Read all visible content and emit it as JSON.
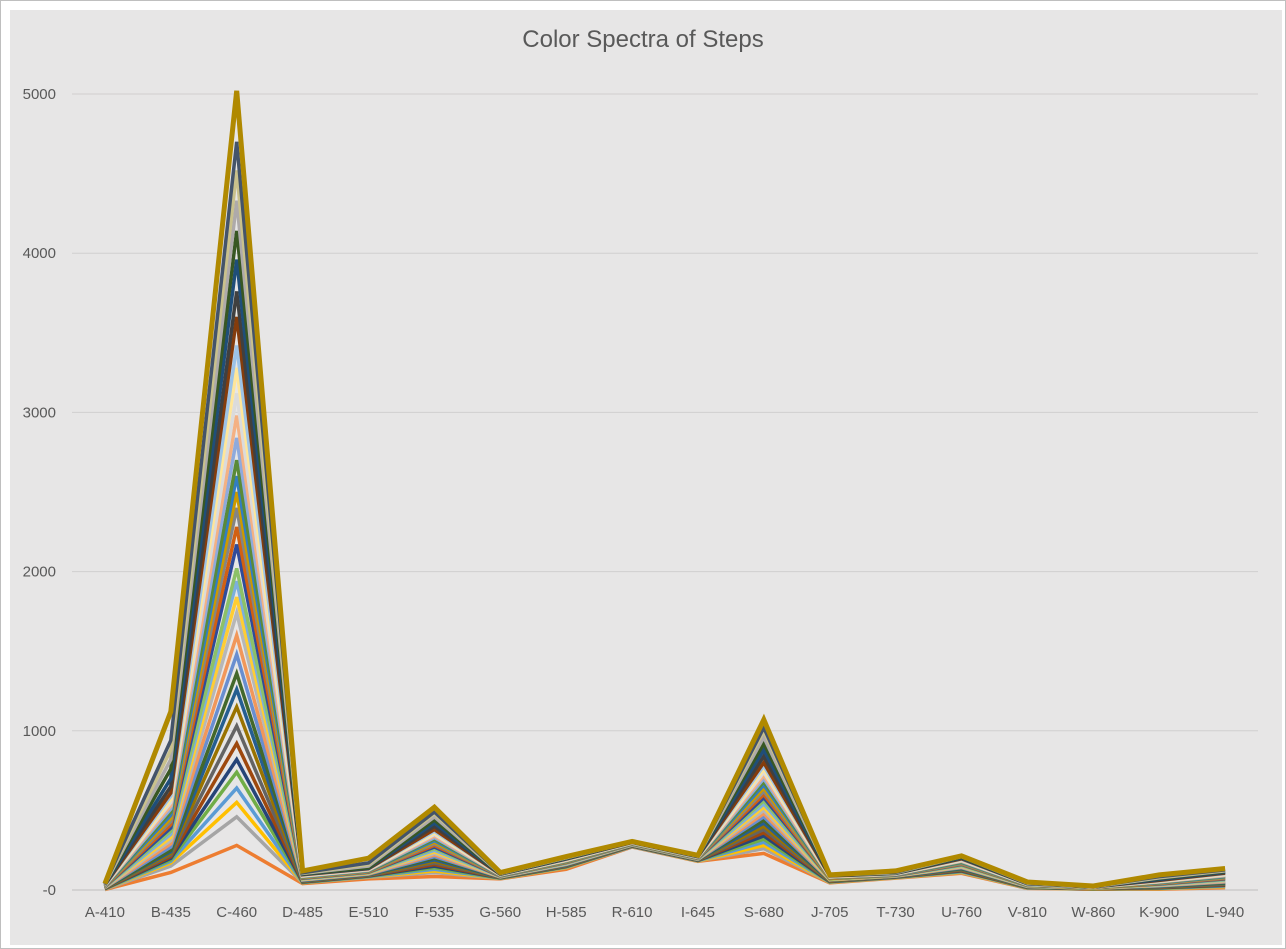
{
  "chart_data": {
    "type": "line",
    "title": "Color Spectra of Steps",
    "xlabel": "",
    "ylabel": "",
    "categories": [
      "A-410",
      "B-435",
      "C-460",
      "D-485",
      "E-510",
      "F-535",
      "G-560",
      "H-585",
      "R-610",
      "I-645",
      "S-680",
      "J-705",
      "T-730",
      "U-760",
      "V-810",
      "W-860",
      "K-900",
      "L-940"
    ],
    "y_ticks": [
      "-0",
      "1000",
      "2000",
      "3000",
      "4000",
      "5000"
    ],
    "ylim": [
      0,
      5000
    ],
    "grid": true,
    "legend": "none",
    "series": [
      {
        "values": [
          3,
          110,
          280,
          40,
          70,
          85,
          70,
          130,
          270,
          180,
          230,
          45,
          75,
          105,
          10,
          5,
          5,
          15
        ],
        "color": "#ed7d31"
      },
      {
        "values": [
          5,
          150,
          460,
          45,
          80,
          110,
          72,
          140,
          272,
          182,
          260,
          48,
          77,
          110,
          12,
          6,
          8,
          20
        ],
        "color": "#a5a5a5"
      },
      {
        "values": [
          6,
          170,
          550,
          46,
          82,
          120,
          73,
          142,
          273,
          183,
          280,
          49,
          78,
          112,
          13,
          6,
          9,
          22
        ],
        "color": "#ffc000"
      },
      {
        "values": [
          7,
          180,
          640,
          47,
          84,
          130,
          74,
          144,
          274,
          184,
          300,
          50,
          79,
          115,
          14,
          7,
          10,
          25
        ],
        "color": "#5b9bd5"
      },
      {
        "values": [
          8,
          190,
          740,
          48,
          86,
          140,
          75,
          146,
          275,
          185,
          320,
          52,
          80,
          118,
          15,
          7,
          12,
          28
        ],
        "color": "#70ad47"
      },
      {
        "values": [
          9,
          200,
          820,
          50,
          88,
          150,
          76,
          148,
          276,
          186,
          340,
          53,
          81,
          120,
          16,
          8,
          14,
          30
        ],
        "color": "#264478"
      },
      {
        "values": [
          10,
          210,
          920,
          52,
          90,
          160,
          77,
          150,
          277,
          187,
          360,
          55,
          82,
          123,
          17,
          8,
          16,
          33
        ],
        "color": "#9e480e"
      },
      {
        "values": [
          11,
          220,
          1030,
          54,
          92,
          170,
          78,
          152,
          278,
          188,
          380,
          56,
          83,
          126,
          18,
          9,
          18,
          36
        ],
        "color": "#636363"
      },
      {
        "values": [
          12,
          230,
          1150,
          56,
          94,
          180,
          79,
          154,
          279,
          189,
          400,
          58,
          84,
          130,
          19,
          9,
          20,
          40
        ],
        "color": "#997300"
      },
      {
        "values": [
          13,
          240,
          1260,
          58,
          96,
          190,
          80,
          156,
          280,
          190,
          420,
          60,
          85,
          133,
          20,
          10,
          22,
          43
        ],
        "color": "#255e91"
      },
      {
        "values": [
          14,
          250,
          1360,
          60,
          98,
          200,
          81,
          158,
          281,
          191,
          440,
          61,
          86,
          136,
          21,
          10,
          24,
          46
        ],
        "color": "#43682b"
      },
      {
        "values": [
          15,
          270,
          1480,
          62,
          100,
          210,
          82,
          160,
          282,
          192,
          460,
          63,
          87,
          140,
          22,
          11,
          26,
          50
        ],
        "color": "#698ed0"
      },
      {
        "values": [
          16,
          290,
          1600,
          64,
          102,
          220,
          83,
          162,
          283,
          193,
          480,
          64,
          88,
          143,
          23,
          11,
          28,
          53
        ],
        "color": "#f1975a"
      },
      {
        "values": [
          17,
          310,
          1740,
          66,
          104,
          230,
          84,
          164,
          284,
          194,
          500,
          66,
          89,
          146,
          24,
          12,
          30,
          56
        ],
        "color": "#b7b7b7"
      },
      {
        "values": [
          18,
          330,
          1840,
          68,
          106,
          240,
          85,
          166,
          285,
          195,
          520,
          67,
          90,
          150,
          25,
          12,
          32,
          60
        ],
        "color": "#ffcd33"
      },
      {
        "values": [
          19,
          350,
          1940,
          70,
          108,
          250,
          86,
          168,
          286,
          196,
          540,
          69,
          91,
          153,
          26,
          13,
          34,
          63
        ],
        "color": "#7cafdd"
      },
      {
        "values": [
          20,
          370,
          2020,
          72,
          110,
          260,
          87,
          170,
          287,
          197,
          560,
          70,
          92,
          156,
          27,
          13,
          36,
          66
        ],
        "color": "#8cc168"
      },
      {
        "values": [
          21,
          390,
          2170,
          74,
          112,
          270,
          88,
          172,
          288,
          198,
          580,
          72,
          93,
          160,
          28,
          14,
          38,
          70
        ],
        "color": "#2f4b9a"
      },
      {
        "values": [
          22,
          410,
          2280,
          76,
          114,
          280,
          89,
          174,
          289,
          199,
          600,
          73,
          94,
          163,
          29,
          14,
          40,
          73
        ],
        "color": "#d26012"
      },
      {
        "values": [
          23,
          430,
          2400,
          78,
          116,
          290,
          90,
          176,
          290,
          200,
          620,
          75,
          95,
          166,
          30,
          15,
          42,
          76
        ],
        "color": "#848484"
      },
      {
        "values": [
          24,
          450,
          2500,
          80,
          118,
          300,
          91,
          178,
          291,
          201,
          640,
          76,
          96,
          170,
          31,
          15,
          44,
          80
        ],
        "color": "#cc9a00"
      },
      {
        "values": [
          25,
          470,
          2600,
          82,
          120,
          310,
          92,
          180,
          292,
          202,
          660,
          78,
          97,
          173,
          32,
          16,
          46,
          83
        ],
        "color": "#327dc2"
      },
      {
        "values": [
          26,
          490,
          2700,
          84,
          122,
          320,
          93,
          182,
          293,
          203,
          680,
          79,
          98,
          176,
          33,
          16,
          48,
          86
        ],
        "color": "#5a8a39"
      },
      {
        "values": [
          27,
          510,
          2840,
          86,
          124,
          330,
          94,
          184,
          294,
          204,
          700,
          81,
          99,
          180,
          34,
          17,
          50,
          90
        ],
        "color": "#8faadc"
      },
      {
        "values": [
          28,
          530,
          2980,
          88,
          126,
          340,
          95,
          186,
          295,
          205,
          720,
          82,
          100,
          183,
          35,
          17,
          52,
          93
        ],
        "color": "#f4b183"
      },
      {
        "values": [
          29,
          550,
          3120,
          90,
          128,
          350,
          96,
          188,
          296,
          206,
          740,
          84,
          101,
          186,
          36,
          18,
          54,
          96
        ],
        "color": "#dbdbdb"
      },
      {
        "values": [
          30,
          570,
          3280,
          92,
          130,
          360,
          97,
          190,
          297,
          207,
          760,
          85,
          102,
          190,
          37,
          18,
          56,
          100
        ],
        "color": "#ffe699"
      },
      {
        "values": [
          31,
          590,
          3420,
          94,
          132,
          370,
          98,
          192,
          298,
          208,
          780,
          87,
          103,
          193,
          38,
          19,
          58,
          103
        ],
        "color": "#9dc3e6"
      },
      {
        "values": [
          32,
          610,
          3600,
          96,
          134,
          380,
          99,
          194,
          299,
          209,
          800,
          88,
          104,
          196,
          39,
          19,
          60,
          106
        ],
        "color": "#843c0c"
      },
      {
        "values": [
          33,
          650,
          3760,
          98,
          136,
          400,
          100,
          196,
          300,
          210,
          840,
          90,
          105,
          200,
          40,
          20,
          64,
          110
        ],
        "color": "#404040"
      },
      {
        "values": [
          34,
          700,
          3960,
          100,
          138,
          420,
          101,
          198,
          301,
          211,
          880,
          91,
          106,
          203,
          41,
          20,
          68,
          113
        ],
        "color": "#1f4e79"
      },
      {
        "values": [
          35,
          760,
          4140,
          102,
          140,
          440,
          102,
          200,
          302,
          212,
          920,
          93,
          107,
          206,
          42,
          21,
          72,
          116
        ],
        "color": "#385723"
      },
      {
        "values": [
          36,
          820,
          4330,
          104,
          150,
          460,
          103,
          202,
          303,
          213,
          960,
          94,
          108,
          210,
          43,
          21,
          76,
          120
        ],
        "color": "#aeaaaa"
      },
      {
        "values": [
          37,
          880,
          4520,
          106,
          160,
          480,
          104,
          204,
          304,
          214,
          1000,
          96,
          110,
          213,
          44,
          22,
          80,
          123
        ],
        "color": "#c9c18c"
      },
      {
        "values": [
          38,
          940,
          4700,
          108,
          170,
          490,
          105,
          206,
          305,
          215,
          1020,
          97,
          112,
          216,
          45,
          22,
          84,
          126
        ],
        "color": "#44546a"
      },
      {
        "values": [
          40,
          1120,
          5020,
          120,
          200,
          520,
          110,
          210,
          305,
          218,
          1070,
          95,
          120,
          215,
          50,
          25,
          95,
          135
        ],
        "color": "#b08900"
      }
    ]
  }
}
